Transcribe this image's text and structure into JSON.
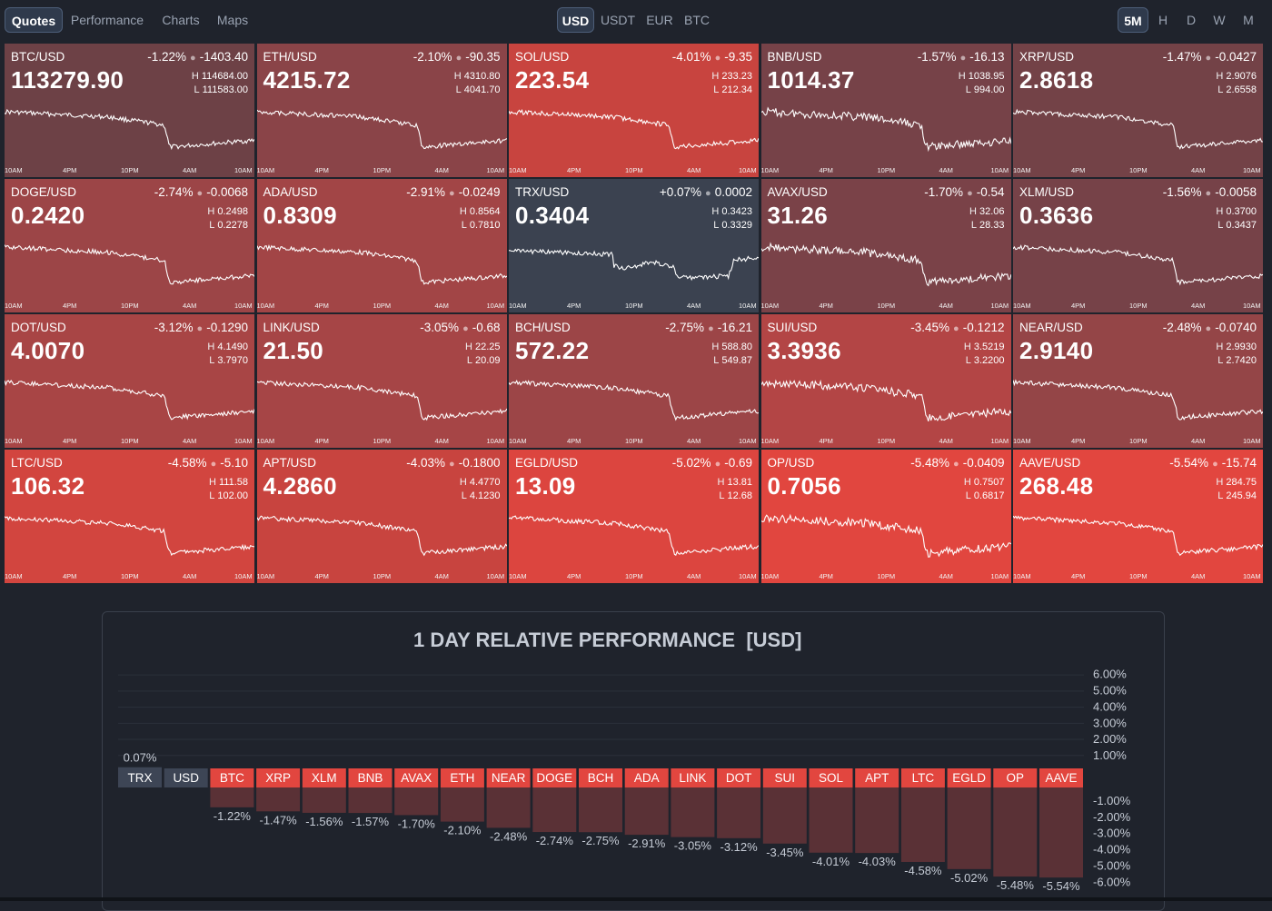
{
  "nav": {
    "tabs": [
      "Quotes",
      "Performance",
      "Charts",
      "Maps"
    ],
    "active_tab": "Quotes"
  },
  "currencies": {
    "tabs": [
      "USD",
      "USDT",
      "EUR",
      "BTC"
    ],
    "active": "USD"
  },
  "timeframes": {
    "tabs": [
      "5M",
      "H",
      "D",
      "W",
      "M"
    ],
    "active": "5M"
  },
  "axis_times": [
    "10AM",
    "4PM",
    "10PM",
    "4AM",
    "10AM"
  ],
  "tiles": [
    {
      "symbol": "BTC/USD",
      "change_pct": "-1.22%",
      "change_abs": "-1403.40",
      "price": "113279.90",
      "high": "114684.00",
      "low": "111583.00",
      "color": "#6d4146"
    },
    {
      "symbol": "ETH/USD",
      "change_pct": "-2.10%",
      "change_abs": "-90.35",
      "price": "4215.72",
      "high": "4310.80",
      "low": "4041.70",
      "color": "#8a4448"
    },
    {
      "symbol": "SOL/USD",
      "change_pct": "-4.01%",
      "change_abs": "-9.35",
      "price": "223.54",
      "high": "233.23",
      "low": "212.34",
      "color": "#c8443f"
    },
    {
      "symbol": "BNB/USD",
      "change_pct": "-1.57%",
      "change_abs": "-16.13",
      "price": "1014.37",
      "high": "1038.95",
      "low": "994.00",
      "color": "#764248"
    },
    {
      "symbol": "XRP/USD",
      "change_pct": "-1.47%",
      "change_abs": "-0.0427",
      "price": "2.8618",
      "high": "2.9076",
      "low": "2.6558",
      "color": "#734247"
    },
    {
      "symbol": "DOGE/USD",
      "change_pct": "-2.74%",
      "change_abs": "-0.0068",
      "price": "0.2420",
      "high": "0.2498",
      "low": "0.2278",
      "color": "#9c4547"
    },
    {
      "symbol": "ADA/USD",
      "change_pct": "-2.91%",
      "change_abs": "-0.0249",
      "price": "0.8309",
      "high": "0.8564",
      "low": "0.7810",
      "color": "#a24546"
    },
    {
      "symbol": "TRX/USD",
      "change_pct": "+0.07%",
      "change_abs": "0.0002",
      "price": "0.3404",
      "high": "0.3423",
      "low": "0.3329",
      "color": "#3b4250"
    },
    {
      "symbol": "AVAX/USD",
      "change_pct": "-1.70%",
      "change_abs": "-0.54",
      "price": "31.26",
      "high": "32.06",
      "low": "28.33",
      "color": "#7a4248"
    },
    {
      "symbol": "XLM/USD",
      "change_pct": "-1.56%",
      "change_abs": "-0.0058",
      "price": "0.3636",
      "high": "0.3700",
      "low": "0.3437",
      "color": "#764248"
    },
    {
      "symbol": "DOT/USD",
      "change_pct": "-3.12%",
      "change_abs": "-0.1290",
      "price": "4.0070",
      "high": "4.1490",
      "low": "3.7970",
      "color": "#a84545"
    },
    {
      "symbol": "LINK/USD",
      "change_pct": "-3.05%",
      "change_abs": "-0.68",
      "price": "21.50",
      "high": "22.25",
      "low": "20.09",
      "color": "#a64546"
    },
    {
      "symbol": "BCH/USD",
      "change_pct": "-2.75%",
      "change_abs": "-16.21",
      "price": "572.22",
      "high": "588.80",
      "low": "549.87",
      "color": "#9c4547"
    },
    {
      "symbol": "SUI/USD",
      "change_pct": "-3.45%",
      "change_abs": "-0.1212",
      "price": "3.3936",
      "high": "3.5219",
      "low": "3.2200",
      "color": "#b34545"
    },
    {
      "symbol": "NEAR/USD",
      "change_pct": "-2.48%",
      "change_abs": "-0.0740",
      "price": "2.9140",
      "high": "2.9930",
      "low": "2.7420",
      "color": "#944547"
    },
    {
      "symbol": "LTC/USD",
      "change_pct": "-4.58%",
      "change_abs": "-5.10",
      "price": "106.32",
      "high": "111.58",
      "low": "102.00",
      "color": "#d2453f"
    },
    {
      "symbol": "APT/USD",
      "change_pct": "-4.03%",
      "change_abs": "-0.1800",
      "price": "4.2860",
      "high": "4.4770",
      "low": "4.1230",
      "color": "#c8443f"
    },
    {
      "symbol": "EGLD/USD",
      "change_pct": "-5.02%",
      "change_abs": "-0.69",
      "price": "13.09",
      "high": "13.81",
      "low": "12.68",
      "color": "#dc453f"
    },
    {
      "symbol": "OP/USD",
      "change_pct": "-5.48%",
      "change_abs": "-0.0409",
      "price": "0.7056",
      "high": "0.7507",
      "low": "0.6817",
      "color": "#e1463f"
    },
    {
      "symbol": "AAVE/USD",
      "change_pct": "-5.54%",
      "change_abs": "-15.74",
      "price": "268.48",
      "high": "284.75",
      "low": "245.94",
      "color": "#e2463f"
    }
  ],
  "performance": {
    "title": "1 DAY RELATIVE PERFORMANCE",
    "title_suffix": "[USD]",
    "colors": {
      "up_header": "#3d4555",
      "down_header": "#e2463f",
      "down_bar": "#5a3136",
      "up_bar": "#3d4555",
      "text": "#c6ccd6"
    }
  },
  "chart_data": {
    "type": "bar",
    "title": "1 DAY RELATIVE PERFORMANCE [USD]",
    "categories": [
      "TRX",
      "USD",
      "BTC",
      "XRP",
      "XLM",
      "BNB",
      "AVAX",
      "ETH",
      "NEAR",
      "DOGE",
      "BCH",
      "ADA",
      "LINK",
      "DOT",
      "SUI",
      "SOL",
      "APT",
      "LTC",
      "EGLD",
      "OP",
      "AAVE"
    ],
    "values": [
      0.07,
      0.0,
      -1.22,
      -1.47,
      -1.56,
      -1.57,
      -1.7,
      -2.1,
      -2.48,
      -2.74,
      -2.75,
      -2.91,
      -3.05,
      -3.12,
      -3.45,
      -4.01,
      -4.03,
      -4.58,
      -5.02,
      -5.48,
      -5.54
    ],
    "value_labels": [
      "0.07%",
      "",
      "-1.22%",
      "-1.47%",
      "-1.56%",
      "-1.57%",
      "-1.70%",
      "-2.10%",
      "-2.48%",
      "-2.74%",
      "-2.75%",
      "-2.91%",
      "-3.05%",
      "-3.12%",
      "-3.45%",
      "-4.01%",
      "-4.03%",
      "-4.58%",
      "-5.02%",
      "-5.48%",
      "-5.54%"
    ],
    "yticks_pos": [
      "6.00%",
      "5.00%",
      "4.00%",
      "3.00%",
      "2.00%",
      "1.00%"
    ],
    "yticks_neg": [
      "-1.00%",
      "-2.00%",
      "-3.00%",
      "-4.00%",
      "-5.00%",
      "-6.00%"
    ],
    "ylim": [
      -6,
      6
    ],
    "ylabel": "",
    "xlabel": ""
  }
}
